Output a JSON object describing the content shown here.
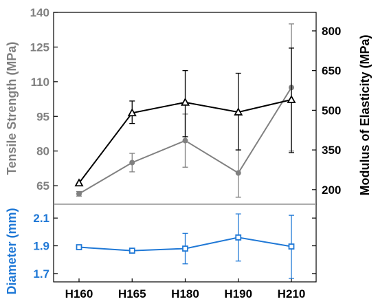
{
  "chart_data": {
    "type": "line",
    "categories": [
      "H160",
      "H165",
      "H180",
      "H190",
      "H210"
    ],
    "upper_panel": {
      "left_axis": {
        "label": "Tensile Strength (MPa)",
        "ticks": [
          "65",
          "80",
          "95",
          "110",
          "125",
          "140"
        ],
        "tick_values": [
          65,
          80,
          95,
          110,
          125,
          140
        ],
        "range": [
          57,
          140
        ],
        "color": "#808080"
      },
      "right_axis": {
        "label": "Modulus of Elasticity (MPa)",
        "ticks": [
          "200",
          "350",
          "500",
          "650",
          "800"
        ],
        "tick_values": [
          200,
          350,
          500,
          650,
          800
        ],
        "range": [
          145,
          870
        ],
        "color": "#000000"
      },
      "series": [
        {
          "axis": "left",
          "color": "#808080",
          "marker": "circle",
          "values": [
            61.5,
            75,
            84.5,
            70.5,
            107.5
          ],
          "err_low": [
            60.5,
            71,
            73,
            60,
            80
          ],
          "err_high": [
            62.5,
            79,
            96,
            80.5,
            135
          ]
        },
        {
          "axis": "right",
          "color": "#000000",
          "marker": "triangle",
          "values": [
            225,
            490,
            530,
            493,
            540
          ],
          "err_low": [
            225,
            450,
            400,
            350,
            340
          ],
          "err_high": [
            225,
            535,
            650,
            640,
            735
          ]
        }
      ]
    },
    "lower_panel": {
      "axis": {
        "label": "Diameter (mm)",
        "ticks": [
          "1.7",
          "1.9",
          "2.1"
        ],
        "tick_values": [
          1.7,
          1.9,
          2.1
        ],
        "range": [
          1.64,
          2.2
        ],
        "color": "#1f78d6"
      },
      "series": [
        {
          "color": "#1f78d6",
          "marker": "square",
          "values": [
            1.89,
            1.865,
            1.88,
            1.96,
            1.895
          ],
          "err_low": [
            1.89,
            1.85,
            1.77,
            1.79,
            1.665
          ],
          "err_high": [
            1.89,
            1.88,
            1.99,
            2.13,
            2.12
          ]
        }
      ]
    }
  }
}
